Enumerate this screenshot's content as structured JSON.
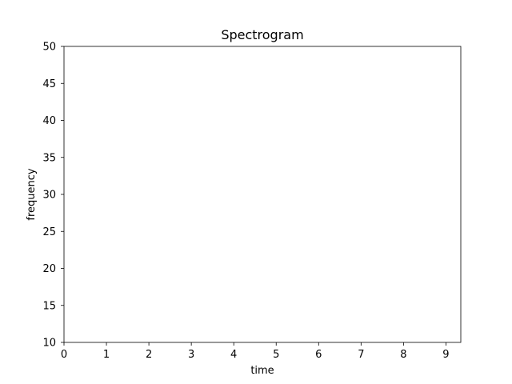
{
  "chart_data": {
    "type": "heatmap",
    "title": "Spectrogram",
    "xlabel": "time",
    "ylabel": "frequency",
    "xlim": [
      0,
      9.35
    ],
    "ylim": [
      10,
      50
    ],
    "x_ticks": [
      0,
      1,
      2,
      3,
      4,
      5,
      6,
      7,
      8,
      9
    ],
    "y_ticks": [
      10,
      15,
      20,
      25,
      30,
      35,
      40,
      45,
      50
    ],
    "grid": false,
    "values": []
  }
}
